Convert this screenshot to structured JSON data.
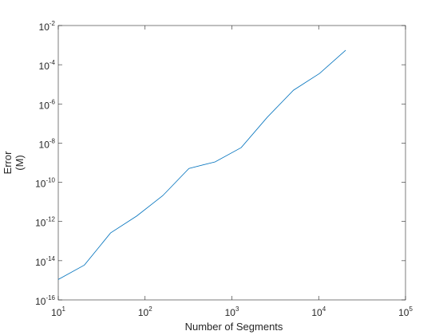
{
  "chart_data": {
    "type": "line",
    "xlabel": "Number of Segments",
    "ylabel": [
      "Error",
      "(M)"
    ],
    "xscale": "log",
    "yscale": "log",
    "xlim": [
      10,
      100000
    ],
    "ylim": [
      1e-16,
      0.01
    ],
    "xticks": [
      {
        "value": 10,
        "label": "10",
        "exponent": "1"
      },
      {
        "value": 100,
        "label": "10",
        "exponent": "2"
      },
      {
        "value": 1000,
        "label": "10",
        "exponent": "3"
      },
      {
        "value": 10000,
        "label": "10",
        "exponent": "4"
      },
      {
        "value": 100000,
        "label": "10",
        "exponent": "5"
      }
    ],
    "yticks": [
      {
        "value": 1e-16,
        "label": "10",
        "exponent": "-16"
      },
      {
        "value": 1e-14,
        "label": "10",
        "exponent": "-14"
      },
      {
        "value": 1e-12,
        "label": "10",
        "exponent": "-12"
      },
      {
        "value": 1e-10,
        "label": "10",
        "exponent": "-10"
      },
      {
        "value": 1e-08,
        "label": "10",
        "exponent": "-8"
      },
      {
        "value": 1e-06,
        "label": "10",
        "exponent": "-6"
      },
      {
        "value": 0.0001,
        "label": "10",
        "exponent": "-4"
      },
      {
        "value": 0.01,
        "label": "10",
        "exponent": "-2"
      }
    ],
    "x": [
      10,
      20,
      40,
      80,
      160,
      320,
      640,
      1280,
      2560,
      5120,
      10240,
      20480
    ],
    "series": [
      {
        "color": "#0072bd",
        "values": [
          1.1e-15,
          6e-15,
          2.6e-13,
          1.9e-12,
          2.1e-11,
          5.1e-10,
          1.1e-09,
          5.9e-09,
          2.1e-07,
          5e-06,
          3.6e-05,
          0.00055
        ]
      }
    ],
    "grid": false
  }
}
